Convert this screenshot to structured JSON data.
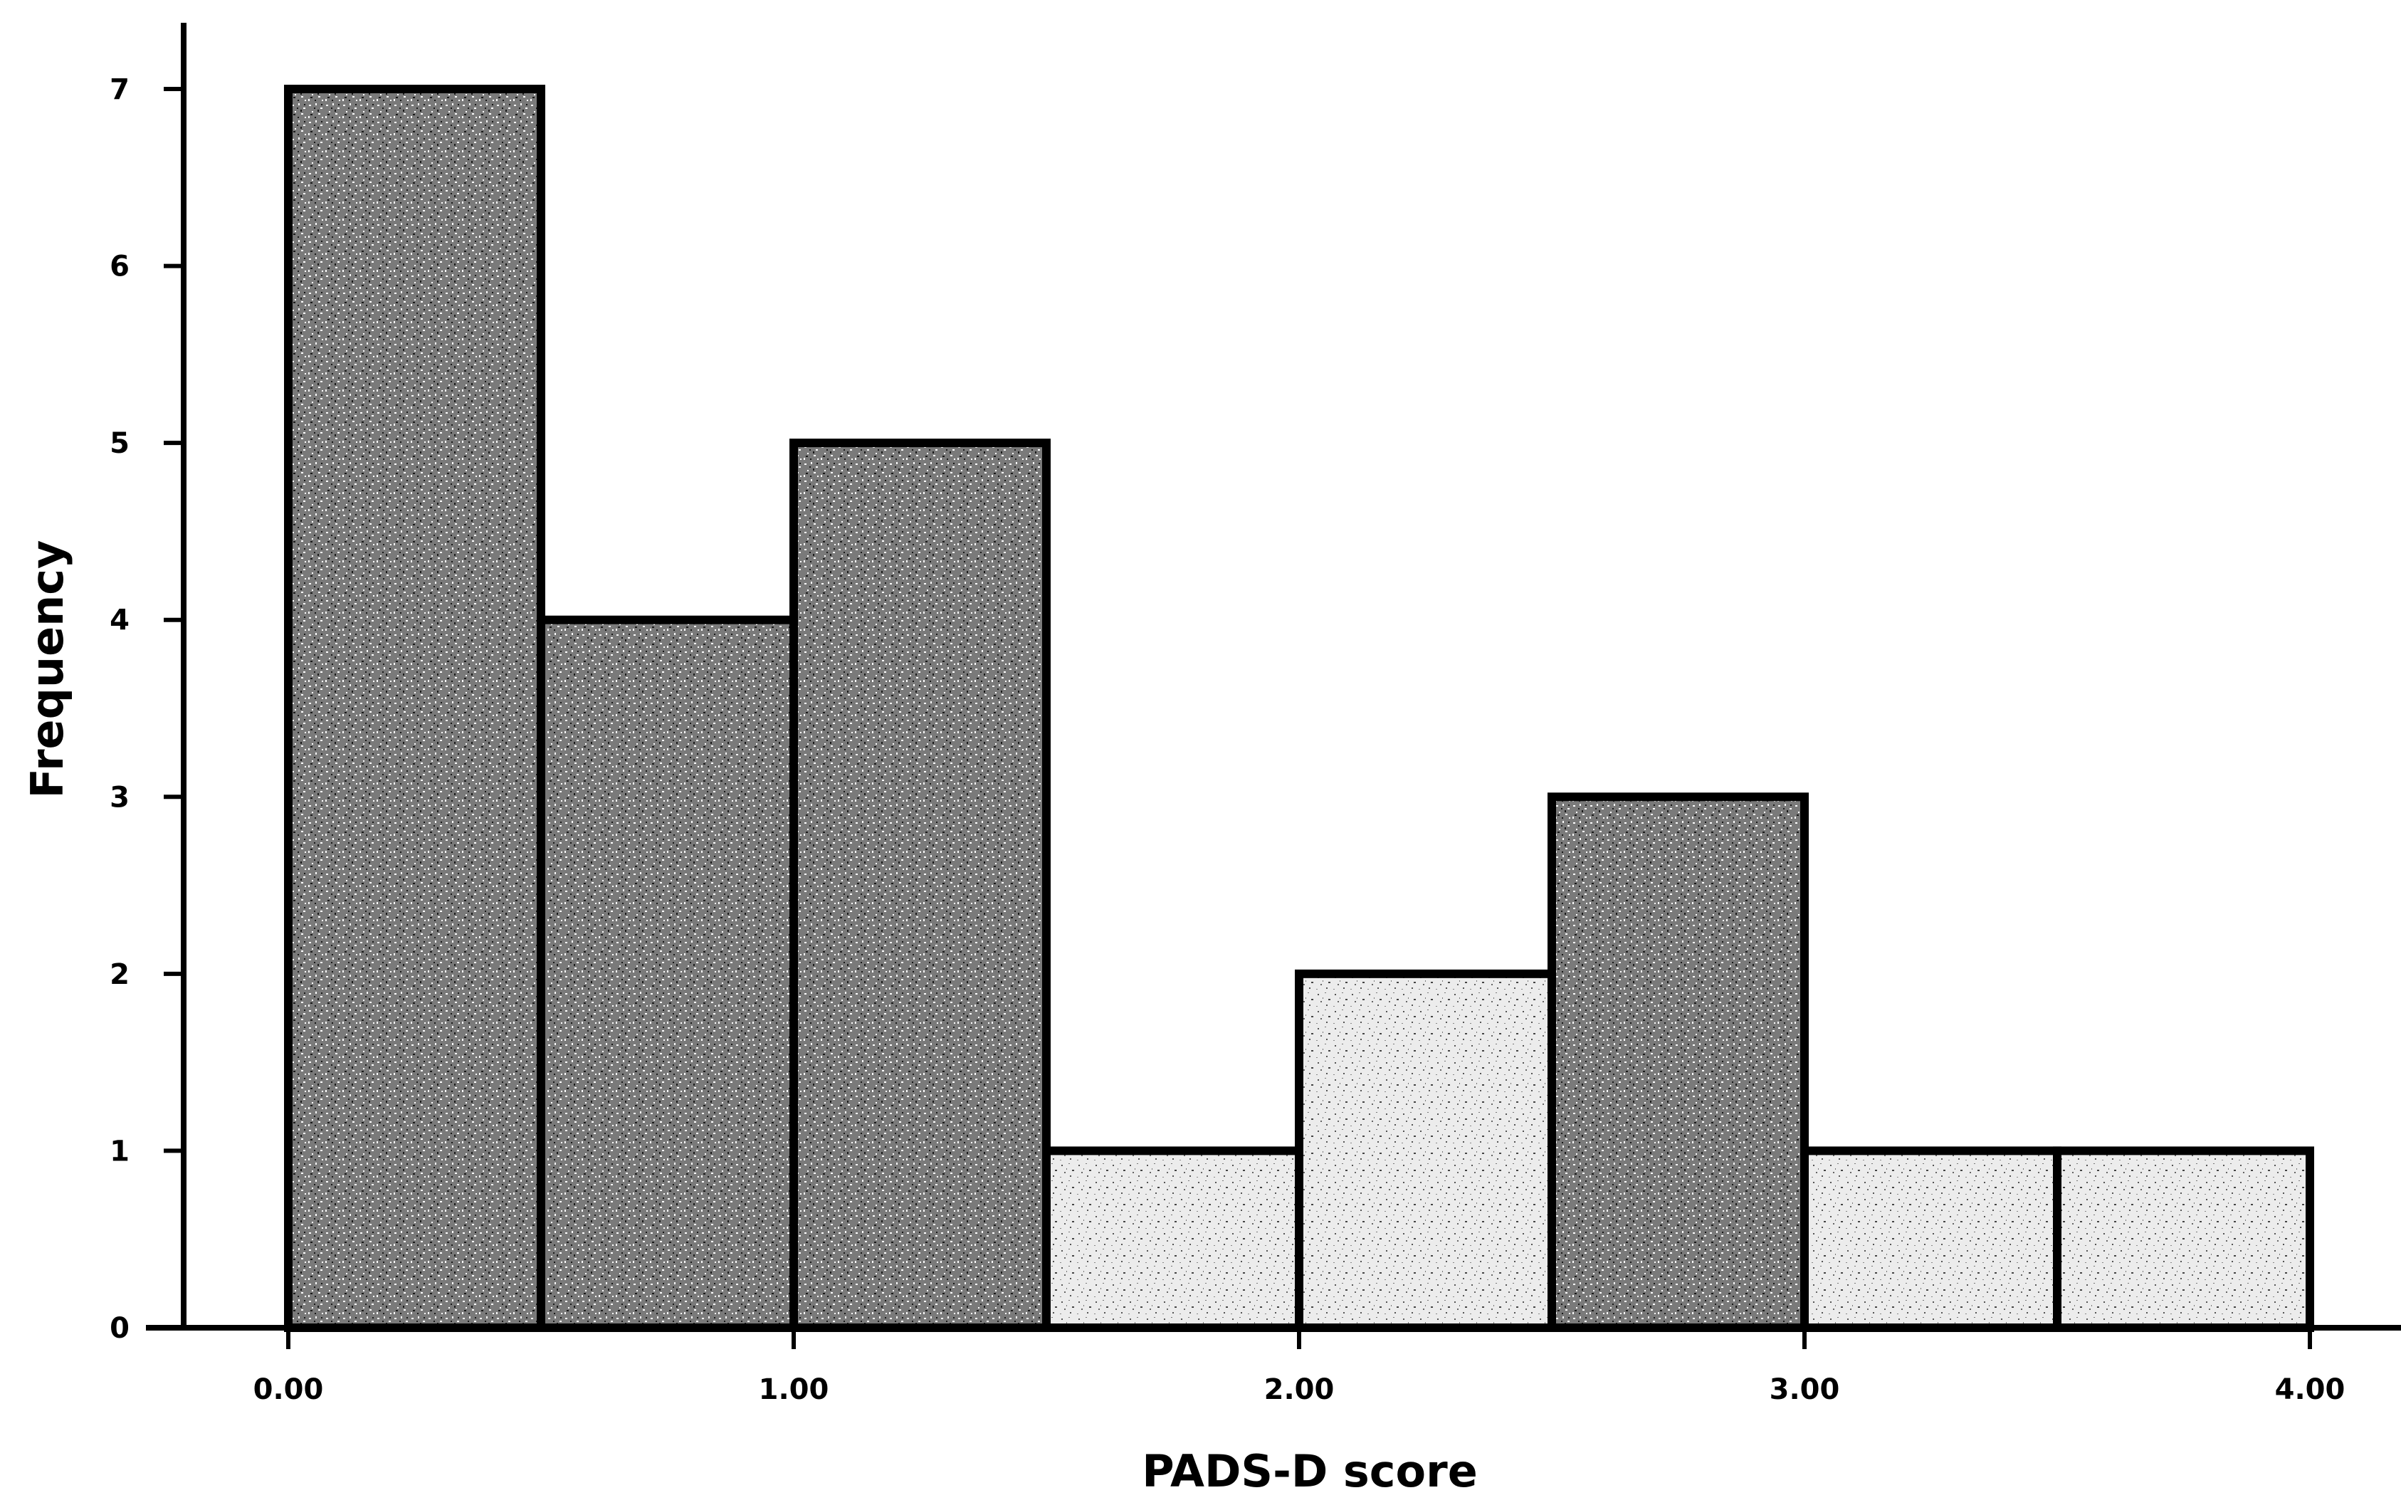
{
  "chart_data": {
    "type": "bar",
    "subtype": "histogram",
    "xlabel": "PADS-D score",
    "ylabel": "Frequency",
    "bins": [
      {
        "x0": 0.0,
        "x1": 0.5,
        "value": 7
      },
      {
        "x0": 0.5,
        "x1": 1.0,
        "value": 4
      },
      {
        "x0": 1.0,
        "x1": 1.5,
        "value": 5
      },
      {
        "x0": 1.5,
        "x1": 2.0,
        "value": 1
      },
      {
        "x0": 2.0,
        "x1": 2.5,
        "value": 2
      },
      {
        "x0": 2.5,
        "x1": 3.0,
        "value": 3
      },
      {
        "x0": 3.0,
        "x1": 3.5,
        "value": 1
      },
      {
        "x0": 3.5,
        "x1": 4.0,
        "value": 1
      }
    ],
    "xlim": [
      0,
      4
    ],
    "ylim": [
      0,
      7
    ],
    "xticks": [
      0,
      1,
      2,
      3,
      4
    ],
    "xtick_labels": [
      "0.00",
      "1.00",
      "2.00",
      "3.00",
      "4.00"
    ],
    "yticks": [
      0,
      1,
      2,
      3,
      4,
      5,
      6,
      7
    ],
    "ytick_labels": [
      "0",
      "1",
      "2",
      "3",
      "4",
      "5",
      "6",
      "7"
    ],
    "grid": false,
    "bar_fill": "speckled grey",
    "colors": {
      "fill": "#8c8c8c",
      "stroke": "#000000",
      "background": "#ffffff"
    }
  }
}
